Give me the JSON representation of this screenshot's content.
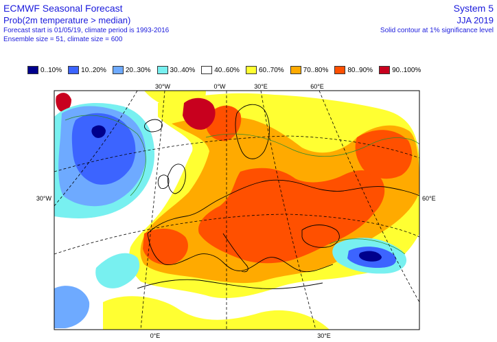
{
  "header": {
    "title": "ECMWF Seasonal Forecast",
    "subtitle": "Prob(2m temperature > median)",
    "info_line1": "Forecast start is 01/05/19, climate period is 1993-2016",
    "info_line2": "Ensemble size = 51, climate size = 600",
    "system": "System 5",
    "season": "JJA 2019",
    "significance": "Solid contour at 1% significance level"
  },
  "legend": [
    {
      "label": "0..10%",
      "color": "#00008c"
    },
    {
      "label": "10..20%",
      "color": "#3c64ff"
    },
    {
      "label": "20..30%",
      "color": "#6eaaff"
    },
    {
      "label": "30..40%",
      "color": "#78f0f0"
    },
    {
      "label": "40..60%",
      "color": "#ffffff"
    },
    {
      "label": "60..70%",
      "color": "#ffff32"
    },
    {
      "label": "70..80%",
      "color": "#ffaa00"
    },
    {
      "label": "80..90%",
      "color": "#ff5000"
    },
    {
      "label": "90..100%",
      "color": "#c8001e"
    }
  ],
  "map_labels": {
    "lon_top": [
      "30°W",
      "0°W",
      "30°E",
      "60°E"
    ],
    "lon_bottom": [
      "0°E",
      "30°E"
    ],
    "lat_left": "30°W",
    "lat_right": "60°E"
  }
}
